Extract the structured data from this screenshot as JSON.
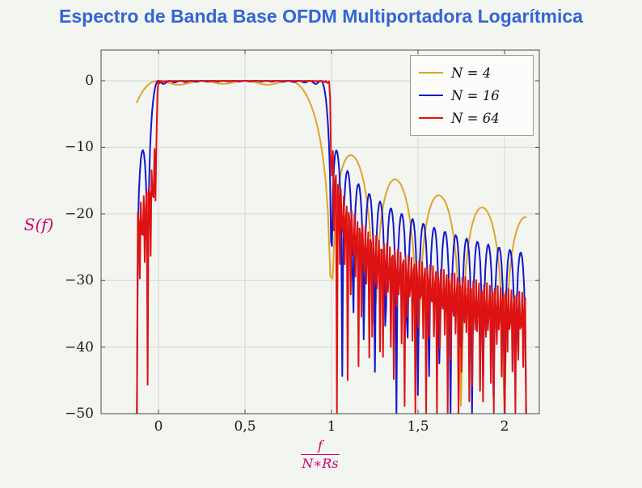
{
  "page": {
    "background": "#f2f5f0"
  },
  "chart_data": {
    "type": "line",
    "title": "Espectro de Banda Base OFDM Multiportadora Logarítmica",
    "title_color": "#3465D4",
    "ylabel": "S(f)",
    "xlabel": "f/(N∗Rs)",
    "xlabel_numerator": "f",
    "xlabel_denominator": "N∗Rs",
    "axis_label_color": "#D4006A",
    "x_ticks": [
      {
        "label": "0",
        "value": 0
      },
      {
        "label": "0,5",
        "value": 0.5
      },
      {
        "label": "1",
        "value": 1
      },
      {
        "label": "1,5",
        "value": 1.5
      },
      {
        "label": "2",
        "value": 2
      }
    ],
    "y_ticks": [
      {
        "label": "0",
        "value": 0
      },
      {
        "label": "−10",
        "value": -10
      },
      {
        "label": "−20",
        "value": -20
      },
      {
        "label": "−30",
        "value": -30
      },
      {
        "label": "−40",
        "value": -40
      },
      {
        "label": "−50",
        "value": -50
      }
    ],
    "xlim": [
      -0.332,
      2.201
    ],
    "ylim": [
      -50,
      4.61
    ],
    "sample_range": [
      -0.125,
      2.125
    ],
    "grid": true,
    "grid_color": "#D6D6D6",
    "axis_color": "#4A4A4A",
    "legend": {
      "position": "top-right"
    },
    "model": "S_dB(u) = 10·log10( Σ_{k=0}^{N−1} sinc²(u·N − k) ),  u = f/(N·Rs); flat 0 dB passband for 0≤u≤1, sinc² sidelobes with nulls every 1/N outside the band",
    "series": [
      {
        "label": "N = 4",
        "N": 4,
        "color": "#E1A42C",
        "samples": 161
      },
      {
        "label": "N = 16",
        "N": 16,
        "color": "#1517CE",
        "samples": 381
      },
      {
        "label": "N = 64",
        "N": 64,
        "color": "#DE1212",
        "samples": 397
      }
    ]
  }
}
